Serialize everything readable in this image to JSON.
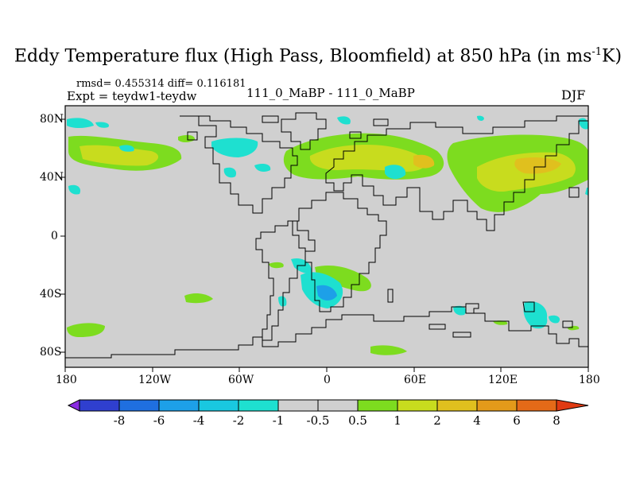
{
  "title": {
    "main": "Eddy Temperature flux (High Pass, Bloomfield) at 850 hPa (in ms",
    "sup": "-1",
    "unit": "K)"
  },
  "stats": "rmsd= 0.455314 diff= 0.116181",
  "expt": "Expt = teydw1-teydw",
  "case": "111_0_MaBP - 111_0_MaBP",
  "season": "DJF",
  "x_ticks": [
    "180",
    "120W",
    "60W",
    "0",
    "60E",
    "120E",
    "180"
  ],
  "y_ticks": [
    "80N",
    "40N",
    "0",
    "40S",
    "80S"
  ],
  "colorbar": {
    "labels": [
      "-8",
      "-6",
      "-4",
      "-2",
      "-1",
      "-0.5",
      "0.5",
      "1",
      "2",
      "4",
      "6",
      "8"
    ],
    "colors": [
      "#8a2be2",
      "#2f3fcf",
      "#1f6fe0",
      "#1da0e8",
      "#19c8e0",
      "#1ee0d0",
      "#d0d0d0",
      "#7ddc1f",
      "#c8dc1e",
      "#e0c01e",
      "#e39a1a",
      "#e46a18",
      "#e03a12"
    ]
  },
  "map": {
    "background": "#d0d0d0",
    "lon_range": [
      -180,
      180
    ],
    "lat_range": [
      -90,
      90
    ]
  }
}
